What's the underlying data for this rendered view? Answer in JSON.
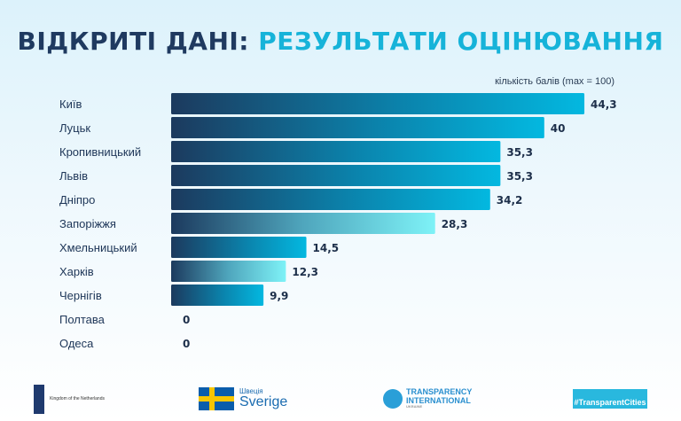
{
  "title": {
    "part1": "ВІДКРИТІ ДАНІ:",
    "part2": "РЕЗУЛЬТАТИ ОЦІНЮВАННЯ"
  },
  "colors": {
    "navy": "#1f3a60",
    "cyan": "#16b3d9",
    "bar_dark": "#1c3a5e",
    "bar_end": "#03b8e0",
    "bar_light_end": "#7ef2f7"
  },
  "chart_data": {
    "type": "bar",
    "orientation": "horizontal",
    "title": "ВІДКРИТІ ДАНІ: РЕЗУЛЬТАТИ ОЦІНЮВАННЯ",
    "xlabel": "кількість балів (max = 100)",
    "categories": [
      "Київ",
      "Луцьк",
      "Кропивницький",
      "Львів",
      "Дніпро",
      "Запоріжжя",
      "Хмельницький",
      "Харків",
      "Чернігів",
      "Полтава",
      "Одеса"
    ],
    "values": [
      44.3,
      40,
      35.3,
      35.3,
      34.2,
      28.3,
      14.5,
      12.3,
      9.9,
      0,
      0
    ],
    "value_labels": [
      "44,3",
      "40",
      "35,3",
      "35,3",
      "34,2",
      "28,3",
      "14,5",
      "12,3",
      "9,9",
      "0",
      "0"
    ],
    "bar_style": [
      "dark",
      "dark",
      "dark",
      "dark",
      "dark",
      "light",
      "dark",
      "light",
      "dark",
      "dark",
      "dark"
    ],
    "xlim": [
      0,
      100
    ],
    "grid": false
  },
  "footer": {
    "netherlands": "Kingdom of the Netherlands",
    "sweden_ua": "Швеція",
    "sweden": "Sverige",
    "ti_line1": "TRANSPARENCY",
    "ti_line2": "INTERNATIONAL",
    "ti_line3": "UKRAINE",
    "hashtag": "#TransparentCities"
  }
}
